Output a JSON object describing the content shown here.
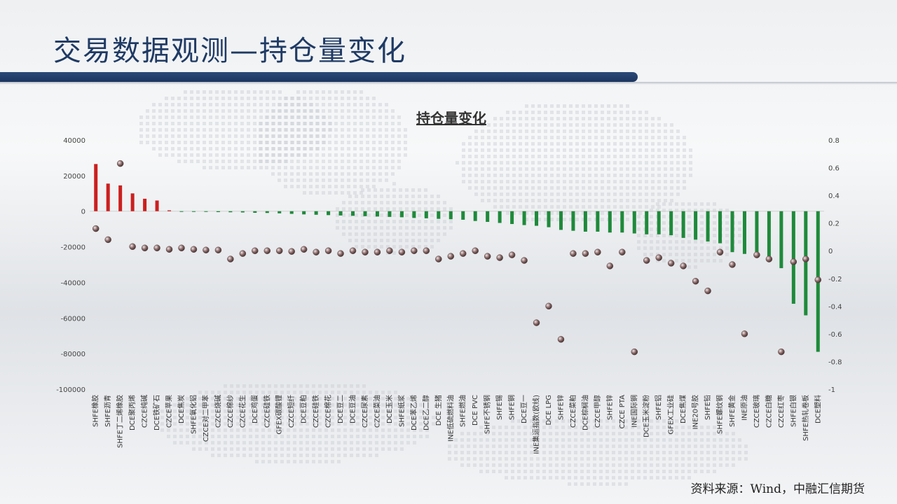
{
  "slide": {
    "title": "交易数据观测—持仓量变化",
    "source": "资料来源：Wind，中融汇信期货"
  },
  "colors": {
    "title": "#1f3a64",
    "band": "#1c3560",
    "positive_bar": "#cc1f1f",
    "negative_bar": "#1e8a3a",
    "marker": "#8a6a6a"
  },
  "chart_data": {
    "type": "bar",
    "title": "持仓量变化",
    "xlabel": "",
    "ylabel": "",
    "ylim": [
      -100000,
      40000
    ],
    "y2lim": [
      -1,
      0.8
    ],
    "y_ticks": [
      40000,
      20000,
      0,
      -20000,
      -40000,
      -60000,
      -80000,
      -100000
    ],
    "y2_ticks": [
      "0.8",
      "0.6",
      "0.4",
      "0.2",
      "0",
      "-0.2",
      "-0.4",
      "-0.6",
      "-0.8",
      "-1"
    ],
    "grid": false,
    "legend": "none",
    "categories": [
      "SHFE橡胶",
      "SHFE沥青",
      "SHFE丁二烯橡胶",
      "DCE聚丙烯",
      "CZCE纯碱",
      "DCE铁矿石",
      "CZCE苹果",
      "DCE焦炭",
      "SHFE氧化铝",
      "CZCE对二甲苯",
      "CZCE烧碱",
      "CZCE棉纱",
      "CZCE花生",
      "DCE鸡蛋",
      "CZCE硅铁",
      "GFEX碳酸锂",
      "CZCE短纤",
      "DCE豆粕",
      "CZCE硅铁",
      "CZCE棉花",
      "DCE豆二",
      "DCE豆油",
      "CZCE尿素",
      "CZCE菜油",
      "DCE玉米",
      "SHFE纸浆",
      "DCE苯乙烯",
      "DCE乙二醇",
      "DCE 生猪",
      "INE低硫燃料油",
      "SHFE燃油",
      "DCE PVC",
      "SHFE不锈钢",
      "SHFE锡",
      "SHFE铜",
      "DCE豆一",
      "INE集运指数(欧线)",
      "DCE LPG",
      "SHFE锌",
      "CZCE菜粕",
      "DCE棕榈油",
      "CZCE甲醇",
      "SHFE锌",
      "CZCE PTA",
      "INE国际铜",
      "DCE玉米淀粉",
      "SHFE铝",
      "GFEX工业硅",
      "DCE焦煤",
      "INE20号胶",
      "SHFE铅",
      "SHFE螺纹钢",
      "SHFE黄金",
      "INE原油",
      "CZCE玻璃",
      "CZCE白糖",
      "CZCE红枣",
      "SHFE白银",
      "SHFE热轧卷板",
      "DCE塑料"
    ],
    "series": [
      {
        "axis": "left",
        "values": [
          26500,
          15500,
          14500,
          10000,
          7000,
          6000,
          500,
          -200,
          -300,
          -400,
          -500,
          -600,
          -700,
          -900,
          -1000,
          -1200,
          -1500,
          -1800,
          -2000,
          -2200,
          -2400,
          -2600,
          -2800,
          -3000,
          -3200,
          -3400,
          -3800,
          -4000,
          -4300,
          -4500,
          -4800,
          -5500,
          -6000,
          -6600,
          -7200,
          -7800,
          -8200,
          -9000,
          -10500,
          -11000,
          -11500,
          -11500,
          -12000,
          -12000,
          -12500,
          -13000,
          -13000,
          -13500,
          -15000,
          -16000,
          -17000,
          -18000,
          -23000,
          -24000,
          -26000,
          -27500,
          -32000,
          -52000,
          -58500,
          -79000
        ]
      },
      {
        "axis": "right",
        "values": [
          0.16,
          0.08,
          0.63,
          0.03,
          0.02,
          0.02,
          0.01,
          0.02,
          0.01,
          0.005,
          0.005,
          -0.06,
          -0.02,
          0.0,
          0.0,
          0.0,
          -0.005,
          0.01,
          -0.01,
          0.0,
          -0.02,
          0.0,
          -0.01,
          -0.01,
          0.0,
          -0.01,
          0.0,
          0.0,
          -0.06,
          -0.04,
          -0.02,
          0.0,
          -0.04,
          -0.05,
          -0.03,
          -0.07,
          -0.52,
          -0.4,
          -0.64,
          -0.02,
          -0.02,
          -0.01,
          -0.11,
          -0.01,
          -0.73,
          -0.07,
          -0.05,
          -0.09,
          -0.11,
          -0.22,
          -0.29,
          -0.01,
          -0.1,
          -0.6,
          -0.03,
          -0.06,
          -0.73,
          -0.08,
          -0.06,
          -0.21
        ]
      }
    ]
  }
}
